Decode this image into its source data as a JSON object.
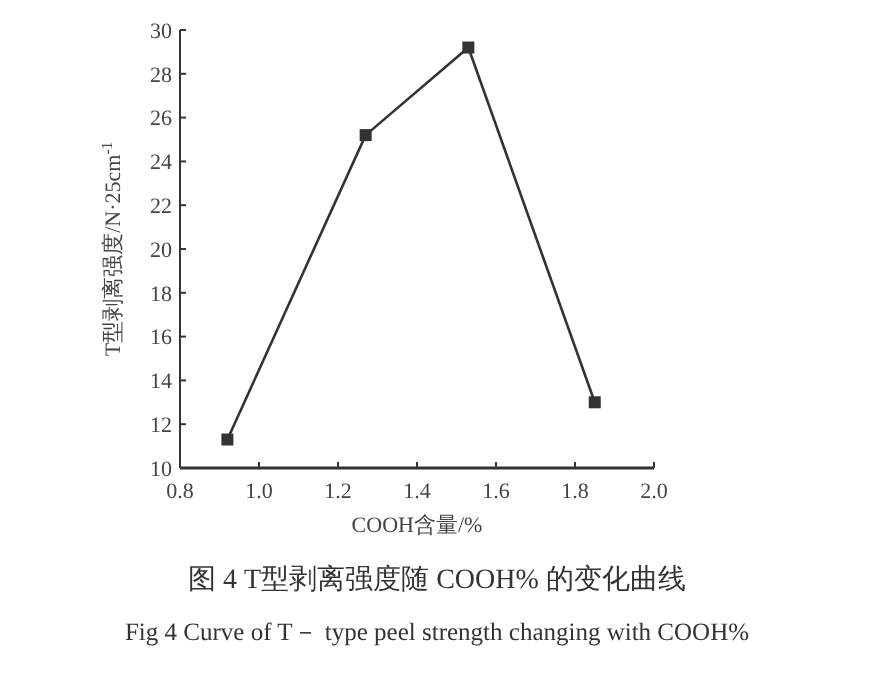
{
  "chart_data": {
    "type": "line",
    "title": "图 4   T型剥离强度随 COOH% 的变化曲线",
    "subtitle": "Fig 4 Curve of T－ type peel strength changing with COOH%",
    "xlabel": "COOH含量/%",
    "ylabel": "T型剥离强度/N·25cm$^{-1}$",
    "x": [
      0.92,
      1.27,
      1.53,
      1.85
    ],
    "series": [
      {
        "color": "#333333",
        "values": [
          11.3,
          25.2,
          29.2,
          13.0
        ]
      }
    ],
    "xlim": [
      0.8,
      2.0
    ],
    "xticks": [
      {
        "value": 0.8,
        "label": "0.8"
      },
      {
        "value": 1.0,
        "label": "1.0"
      },
      {
        "value": 1.2,
        "label": "1.2"
      },
      {
        "value": 1.4,
        "label": "1.4"
      },
      {
        "value": 1.6,
        "label": "1.6"
      },
      {
        "value": 1.8,
        "label": "1.8"
      },
      {
        "value": 2.0,
        "label": "2.0"
      }
    ],
    "ylim": [
      10,
      30
    ],
    "yticks": [
      10,
      12,
      14,
      16,
      18,
      20,
      22,
      24,
      26,
      28,
      30
    ],
    "marker": "square",
    "line_style": "solid"
  }
}
